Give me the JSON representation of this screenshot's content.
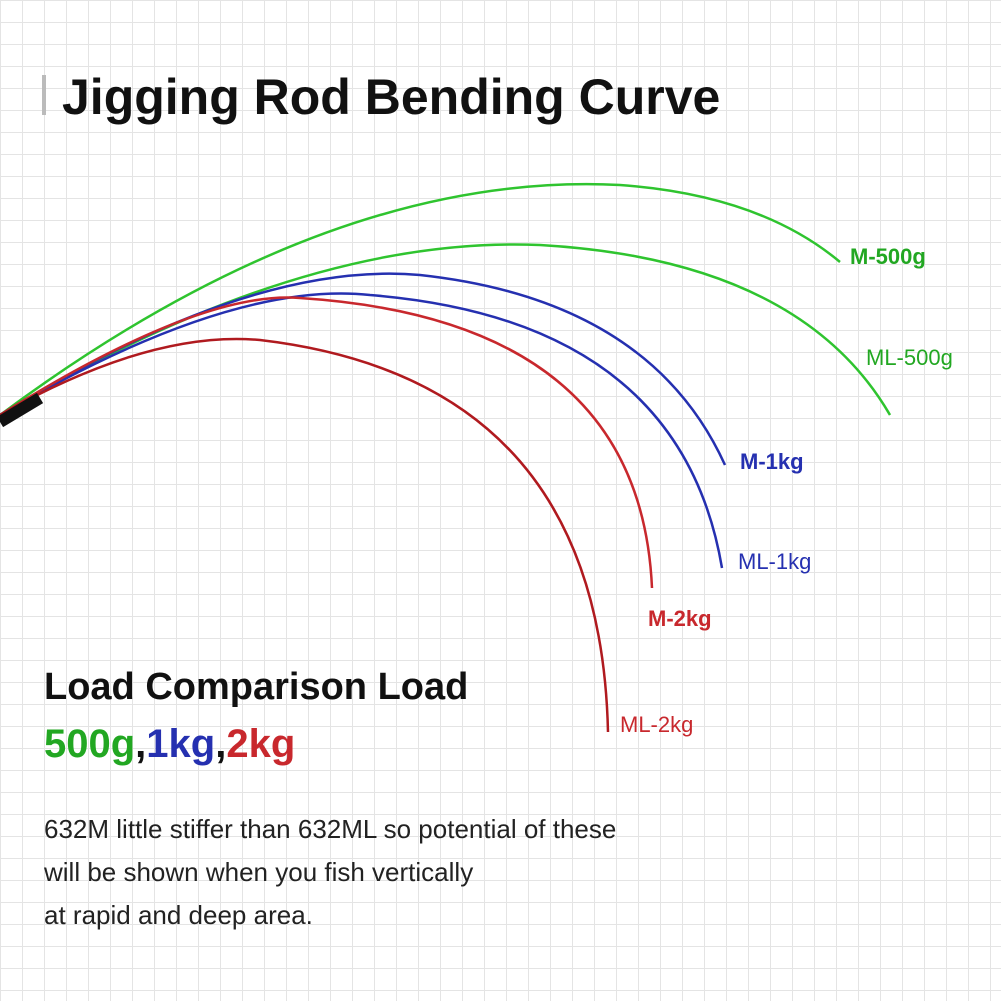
{
  "header": {
    "title": "Jigging Rod Bending Curve"
  },
  "curves": [
    {
      "label": "M-500g"
    },
    {
      "label": "ML-500g"
    },
    {
      "label": "M-1kg"
    },
    {
      "label": "ML-1kg"
    },
    {
      "label": "M-2kg"
    },
    {
      "label": "ML-2kg"
    }
  ],
  "load": {
    "heading": "Load Comparison Load",
    "weights": [
      "500g",
      "1kg",
      "2kg"
    ],
    "separator": ","
  },
  "description": {
    "lines": [
      "632M little stiffer than 632ML so potential of these",
      "will be shown when you fish vertically",
      "at rapid and deep area."
    ]
  }
}
